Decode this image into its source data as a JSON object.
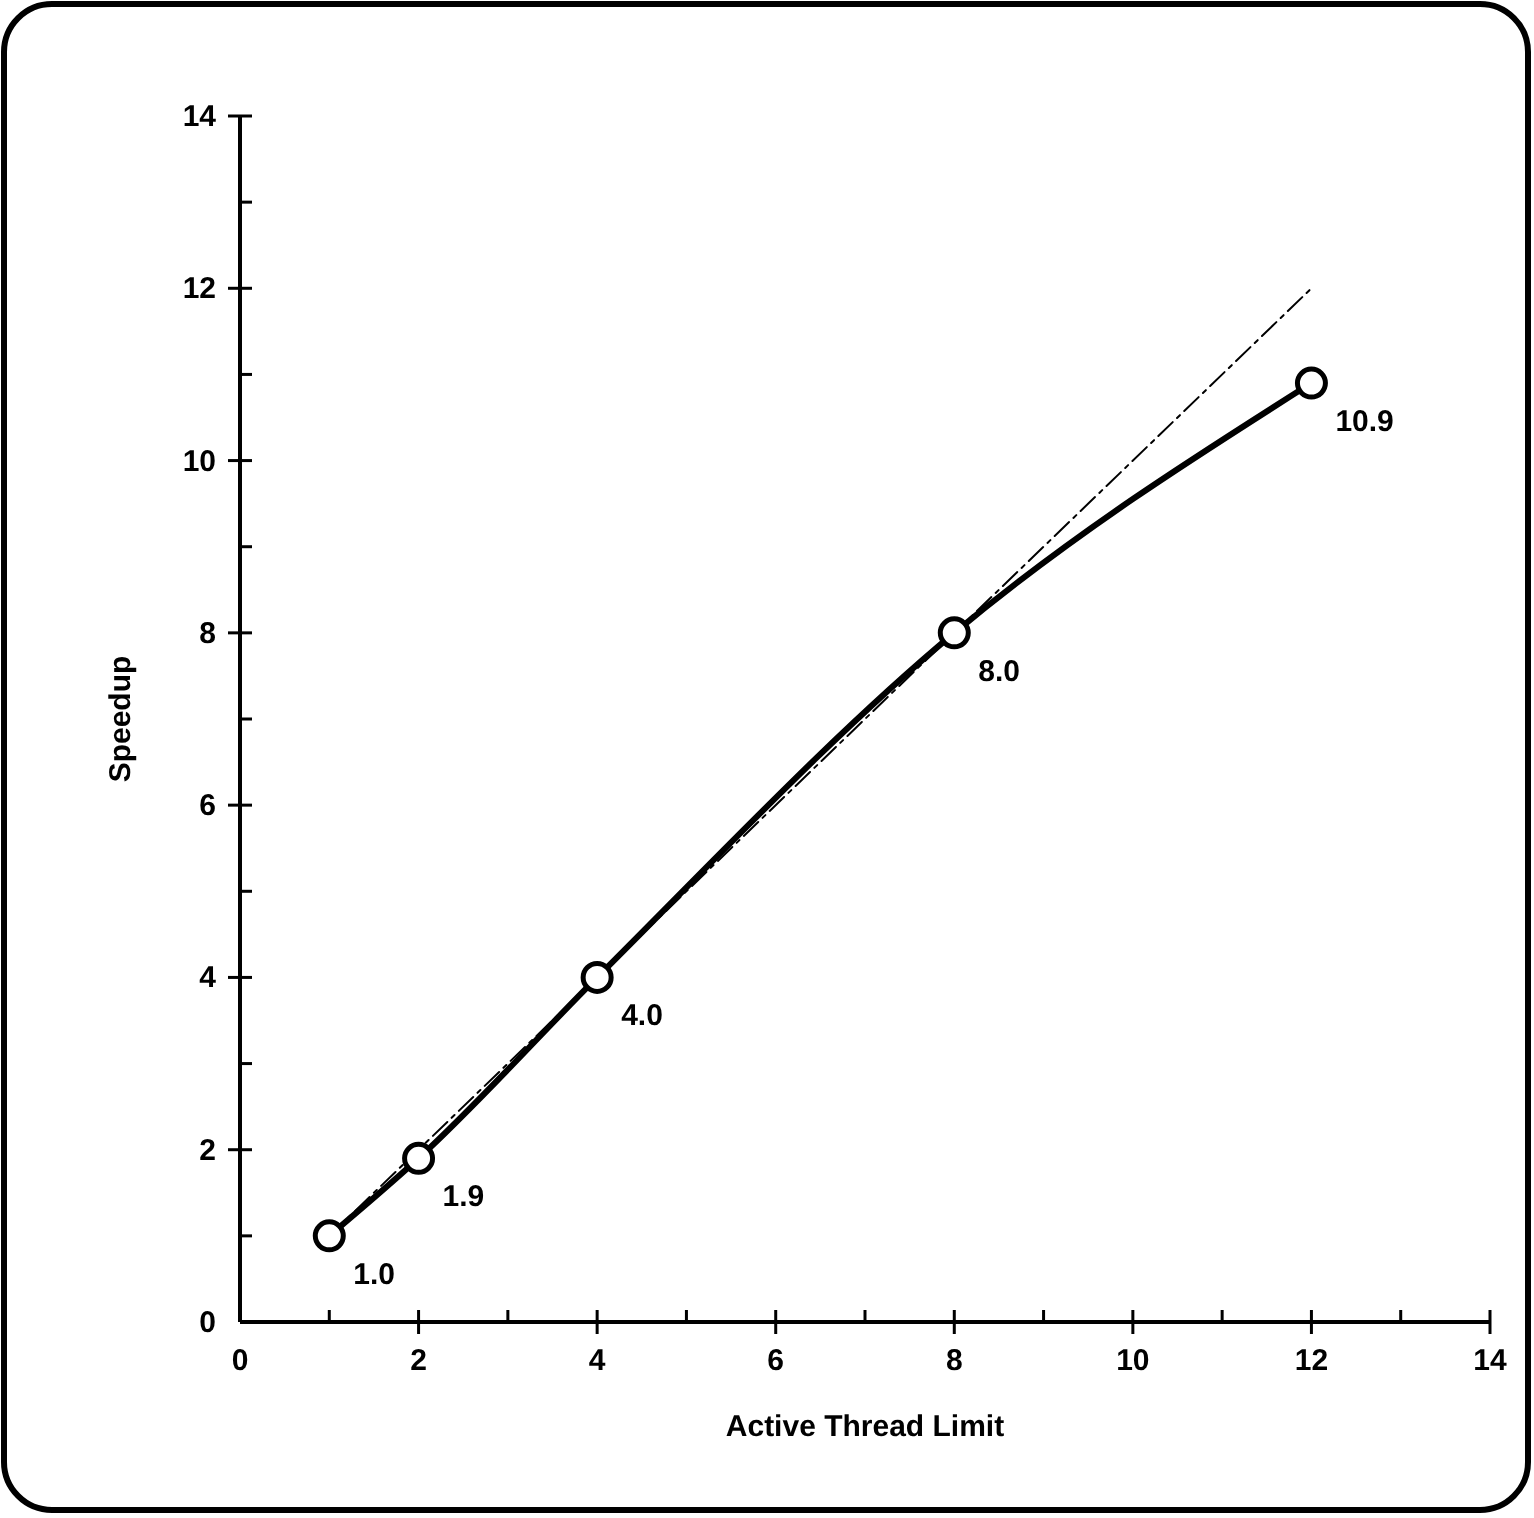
{
  "chart_data": {
    "type": "line",
    "xlabel": "Active Thread Limit",
    "ylabel": "Speedup",
    "xlim": [
      0,
      14
    ],
    "ylim": [
      0,
      14
    ],
    "xticks": [
      0,
      {
        "value": 1,
        "label": null
      },
      2,
      {
        "value": 3,
        "label": null
      },
      4,
      {
        "value": 5,
        "label": null
      },
      6,
      {
        "value": 7,
        "label": null
      },
      8,
      {
        "value": 9,
        "label": null
      },
      10,
      {
        "value": 11,
        "label": null
      },
      12,
      {
        "value": 13,
        "label": null
      },
      14
    ],
    "yticks": [
      0,
      {
        "value": 1,
        "label": null
      },
      2,
      {
        "value": 3,
        "label": null
      },
      4,
      {
        "value": 5,
        "label": null
      },
      6,
      {
        "value": 7,
        "label": null
      },
      8,
      {
        "value": 9,
        "label": null
      },
      10,
      {
        "value": 11,
        "label": null
      },
      12,
      {
        "value": 13,
        "label": null
      },
      14
    ],
    "series": [
      {
        "color": "#000000",
        "x": [
          1,
          2,
          4,
          8,
          12
        ],
        "values": [
          1.0,
          1.9,
          4.0,
          8.0,
          10.9
        ],
        "value_labels": [
          "1.0",
          "1.9",
          "4.0",
          "8.0",
          "10.9"
        ],
        "marker": "circle",
        "line_style": "solid"
      },
      {
        "color": "#000000",
        "x": [
          1,
          12
        ],
        "values": [
          1,
          12
        ],
        "marker": "none",
        "line_style": "dashed"
      }
    ]
  }
}
